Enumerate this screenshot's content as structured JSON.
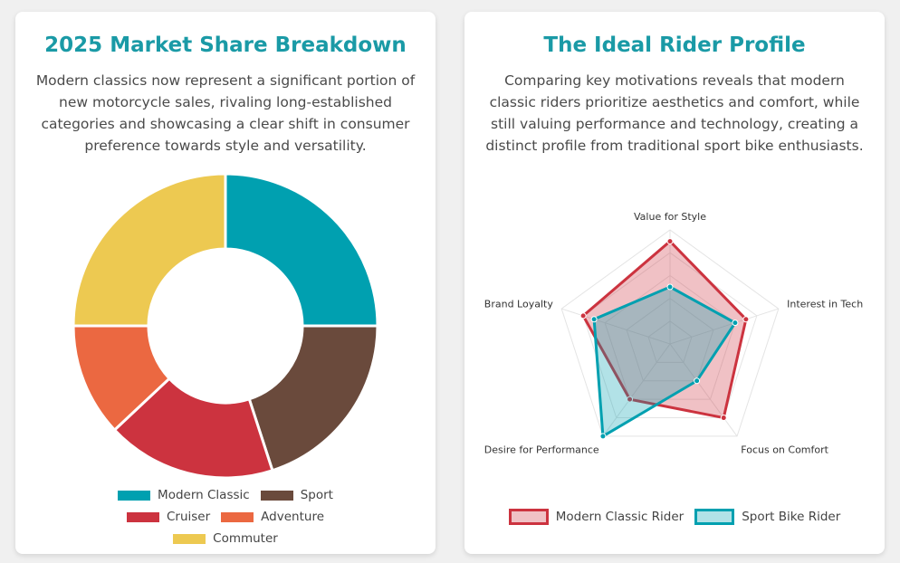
{
  "chart_data": [
    {
      "type": "doughnut",
      "title": "2025 Market Share Breakdown",
      "subtitle": "Modern classics now represent a significant portion of new motorcycle sales, rivaling long-established categories and showcasing a clear shift in consumer preference towards style and versatility.",
      "categories": [
        "Modern Classic",
        "Sport",
        "Cruiser",
        "Adventure",
        "Commuter"
      ],
      "values": [
        25,
        20,
        18,
        12,
        25
      ],
      "colors": [
        "#00a0b0",
        "#6a4a3c",
        "#cc333f",
        "#eb6841",
        "#edc951"
      ]
    },
    {
      "type": "radar",
      "title": "The Ideal Rider Profile",
      "subtitle": "Comparing key motivations reveals that modern classic riders prioritize aesthetics and comfort, while still valuing performance and technology, creating a distinct profile from traditional sport bike enthusiasts.",
      "categories": [
        "Value for Style",
        "Interest in Tech",
        "Focus on Comfort",
        "Desire for Performance",
        "Brand Loyalty"
      ],
      "rlim": [
        0,
        10
      ],
      "grid": true,
      "series": [
        {
          "name": "Modern Classic Rider",
          "color": "#cc333f",
          "values": [
            9,
            7,
            8,
            6,
            8
          ]
        },
        {
          "name": "Sport Bike Rider",
          "color": "#00a0b0",
          "values": [
            5,
            6,
            4,
            10,
            7
          ]
        }
      ]
    }
  ]
}
